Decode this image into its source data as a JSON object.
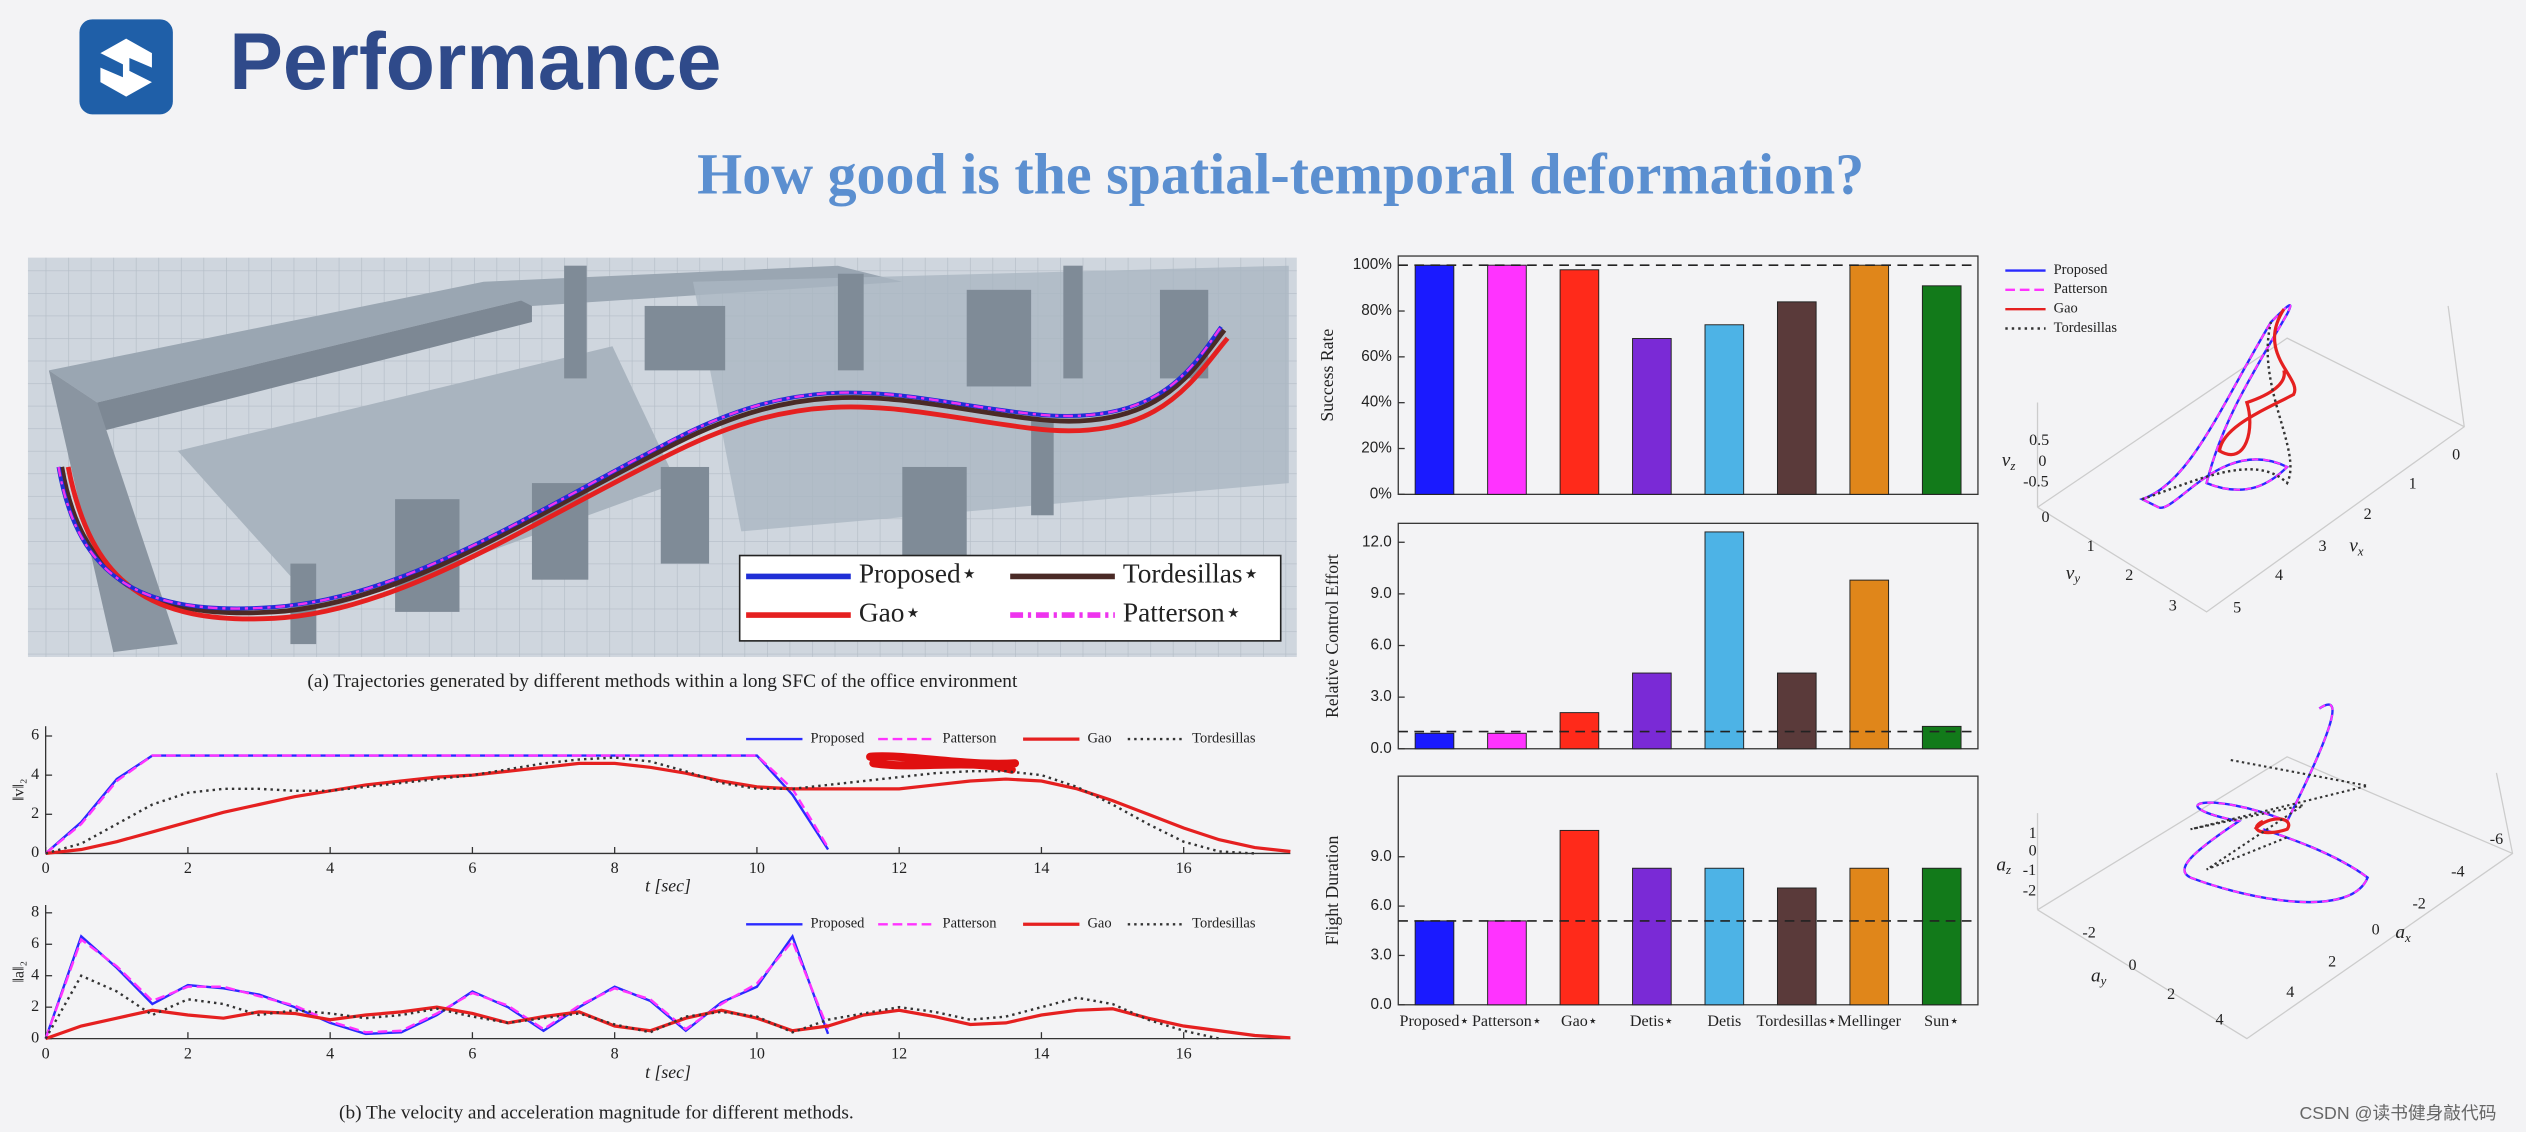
{
  "header": {
    "title": "Performance"
  },
  "subtitle": "How good is the spatial-temporal deformation?",
  "figure_a": {
    "caption": "(a) Trajectories generated by different methods within a long SFC of the office environment",
    "legend": [
      {
        "name": "Proposed⋆",
        "color": "#1f2fd6",
        "style": "solid"
      },
      {
        "name": "Tordesillas⋆",
        "color": "#4a2a26",
        "style": "solid"
      },
      {
        "name": "Gao⋆",
        "color": "#e52020",
        "style": "solid"
      },
      {
        "name": "Patterson⋆",
        "color": "#ee33ee",
        "style": "dashdot"
      }
    ]
  },
  "figure_b_caption": "(b) The velocity and acceleration magnitude for different methods.",
  "chart_data": [
    {
      "type": "line",
      "ylabel": "‖v‖₂",
      "xlabel": "t [sec]",
      "x": [
        0,
        0.5,
        1,
        1.5,
        2,
        2.5,
        3,
        3.5,
        4,
        4.5,
        5,
        5.5,
        6,
        6.5,
        7,
        7.5,
        8,
        8.5,
        9,
        9.5,
        10,
        10.5,
        11,
        11.5,
        12,
        12.5,
        13,
        13.5,
        14,
        14.5,
        15,
        15.5,
        16,
        16.5,
        17,
        17.5
      ],
      "xlim": [
        0,
        17.5
      ],
      "xticks": [
        0,
        2,
        4,
        6,
        8,
        10,
        12,
        14,
        16
      ],
      "ylim": [
        0,
        6.5
      ],
      "yticks": [
        0,
        2,
        4,
        6
      ],
      "series": [
        {
          "name": "Proposed",
          "color": "#2a2aff",
          "style": "solid",
          "values": [
            0,
            1.6,
            3.8,
            5,
            5,
            5,
            5,
            5,
            5,
            5,
            5,
            5,
            5,
            5,
            5,
            5,
            5,
            5,
            5,
            5,
            5,
            3.0,
            0.2,
            null,
            null,
            null,
            null,
            null,
            null,
            null,
            null,
            null,
            null,
            null,
            null,
            null
          ]
        },
        {
          "name": "Patterson",
          "color": "#ff33ff",
          "style": "dashed",
          "values": [
            0,
            1.5,
            3.7,
            5,
            5,
            5,
            5,
            5,
            5,
            5,
            5,
            5,
            5,
            5,
            5,
            5,
            5,
            5,
            5,
            5,
            5,
            3.3,
            0.3,
            null,
            null,
            null,
            null,
            null,
            null,
            null,
            null,
            null,
            null,
            null,
            null,
            null
          ]
        },
        {
          "name": "Gao",
          "color": "#e52020",
          "style": "thick",
          "values": [
            0,
            0.2,
            0.6,
            1.1,
            1.6,
            2.1,
            2.5,
            2.9,
            3.2,
            3.5,
            3.7,
            3.9,
            4.0,
            4.2,
            4.4,
            4.6,
            4.6,
            4.4,
            4.1,
            3.7,
            3.4,
            3.3,
            3.3,
            3.3,
            3.3,
            3.5,
            3.7,
            3.8,
            3.7,
            3.3,
            2.7,
            2.0,
            1.3,
            0.7,
            0.3,
            0.1
          ]
        },
        {
          "name": "Tordesillas",
          "color": "#333333",
          "style": "dotted",
          "values": [
            0,
            0.5,
            1.5,
            2.5,
            3.1,
            3.3,
            3.3,
            3.2,
            3.2,
            3.4,
            3.6,
            3.8,
            4.0,
            4.3,
            4.6,
            4.8,
            4.9,
            4.7,
            4.2,
            3.6,
            3.3,
            3.3,
            3.5,
            3.7,
            3.9,
            4.1,
            4.2,
            4.2,
            4.0,
            3.4,
            2.5,
            1.5,
            0.6,
            0.1,
            0,
            null
          ]
        }
      ]
    },
    {
      "type": "line",
      "ylabel": "‖a‖₂",
      "xlabel": "t [sec]",
      "x": [
        0,
        0.5,
        1,
        1.5,
        2,
        2.5,
        3,
        3.5,
        4,
        4.5,
        5,
        5.5,
        6,
        6.5,
        7,
        7.5,
        8,
        8.5,
        9,
        9.5,
        10,
        10.5,
        11,
        11.5,
        12,
        12.5,
        13,
        13.5,
        14,
        14.5,
        15,
        15.5,
        16,
        16.5,
        17,
        17.5
      ],
      "xlim": [
        0,
        17.5
      ],
      "xticks": [
        0,
        2,
        4,
        6,
        8,
        10,
        12,
        14,
        16
      ],
      "ylim": [
        0,
        8.5
      ],
      "yticks": [
        0,
        2,
        4,
        6,
        8
      ],
      "series": [
        {
          "name": "Proposed",
          "color": "#2a2aff",
          "style": "solid",
          "values": [
            0,
            6.5,
            4.5,
            2.2,
            3.4,
            3.2,
            2.8,
            2.0,
            1.0,
            0.3,
            0.4,
            1.5,
            3.0,
            2.0,
            0.5,
            2.0,
            3.3,
            2.4,
            0.5,
            2.3,
            3.3,
            6.5,
            0.3,
            null,
            null,
            null,
            null,
            null,
            null,
            null,
            null,
            null,
            null,
            null,
            null,
            null
          ]
        },
        {
          "name": "Patterson",
          "color": "#ff33ff",
          "style": "dashed",
          "values": [
            0,
            6.3,
            4.6,
            2.4,
            3.3,
            3.3,
            2.7,
            2.1,
            1.1,
            0.4,
            0.5,
            1.6,
            2.9,
            2.1,
            0.6,
            2.1,
            3.2,
            2.5,
            0.6,
            2.2,
            3.5,
            6.2,
            0.6,
            null,
            null,
            null,
            null,
            null,
            null,
            null,
            null,
            null,
            null,
            null,
            null,
            null
          ]
        },
        {
          "name": "Gao",
          "color": "#e52020",
          "style": "thick",
          "values": [
            0,
            0.8,
            1.3,
            1.8,
            1.5,
            1.3,
            1.7,
            1.6,
            1.2,
            1.5,
            1.7,
            2.0,
            1.6,
            1.0,
            1.4,
            1.7,
            0.8,
            0.5,
            1.3,
            1.8,
            1.3,
            0.5,
            0.8,
            1.5,
            1.8,
            1.4,
            0.9,
            1.0,
            1.5,
            1.8,
            1.9,
            1.3,
            0.8,
            0.5,
            0.2,
            0.05
          ]
        },
        {
          "name": "Tordesillas",
          "color": "#333333",
          "style": "dotted",
          "values": [
            0,
            4,
            3,
            1.5,
            2.5,
            2.2,
            1.5,
            1.8,
            1.6,
            1.3,
            1.5,
            1.9,
            1.4,
            1.0,
            1.3,
            1.6,
            0.9,
            0.4,
            1.4,
            1.7,
            1.4,
            0.4,
            1.2,
            1.6,
            2.0,
            1.7,
            1.2,
            1.4,
            2.0,
            2.6,
            2.2,
            1.2,
            0.5,
            0,
            null,
            null
          ]
        }
      ]
    },
    {
      "type": "bar",
      "ylabel": "Success Rate",
      "categories": [
        null,
        null,
        null,
        null,
        null,
        null,
        null,
        null
      ],
      "values": [
        100,
        100,
        98,
        68,
        74,
        84,
        100,
        91
      ],
      "colors": [
        "#1a1aff",
        "#ff33ff",
        "#ff2a1a",
        "#7a2ad6",
        "#4db3e6",
        "#5a3a3a",
        "#e0861a",
        "#127a1a"
      ],
      "ylim": [
        0,
        104
      ],
      "yticks": [
        {
          "value": 0,
          "label": "0%"
        },
        {
          "value": 20,
          "label": "20%"
        },
        {
          "value": 40,
          "label": "40%"
        },
        {
          "value": 60,
          "label": "60%"
        },
        {
          "value": 80,
          "label": "80%"
        },
        {
          "value": 100,
          "label": "100%"
        }
      ],
      "reference_line": 100
    },
    {
      "type": "bar",
      "ylabel": "Relative Control Effort",
      "categories": [
        null,
        null,
        null,
        null,
        null,
        null,
        null,
        null
      ],
      "values": [
        0.9,
        0.9,
        2.1,
        4.4,
        12.6,
        4.4,
        9.8,
        1.3
      ],
      "colors": [
        "#1a1aff",
        "#ff33ff",
        "#ff2a1a",
        "#7a2ad6",
        "#4db3e6",
        "#5a3a3a",
        "#e0861a",
        "#127a1a"
      ],
      "ylim": [
        0,
        13.1
      ],
      "yticks": [
        {
          "value": 0,
          "label": "0.0"
        },
        {
          "value": 3,
          "label": "3.0"
        },
        {
          "value": 6,
          "label": "6.0"
        },
        {
          "value": 9,
          "label": "9.0"
        },
        {
          "value": 12,
          "label": "12.0"
        }
      ],
      "reference_line": 1
    },
    {
      "type": "bar",
      "ylabel": "Flight Duration",
      "categories": [
        "Proposed⋆",
        "Patterson⋆",
        "Gao⋆",
        "Detis⋆",
        "Detis",
        "Tordesillas⋆",
        "Mellinger",
        "Sun⋆"
      ],
      "values": [
        5.1,
        5.1,
        10.6,
        8.3,
        8.3,
        7.1,
        8.3,
        8.3
      ],
      "colors": [
        "#1a1aff",
        "#ff33ff",
        "#ff2a1a",
        "#7a2ad6",
        "#4db3e6",
        "#5a3a3a",
        "#e0861a",
        "#127a1a"
      ],
      "ylim": [
        0,
        13.9
      ],
      "yticks": [
        {
          "value": 0,
          "label": "0.0"
        },
        {
          "value": 3,
          "label": "3.0"
        },
        {
          "value": 6,
          "label": "6.0"
        },
        {
          "value": 9,
          "label": "9.0"
        }
      ],
      "reference_line": 5.1
    }
  ],
  "figure_3d": [
    {
      "legend": [
        {
          "name": "Proposed",
          "color": "#2a2aff",
          "style": "solid"
        },
        {
          "name": "Patterson",
          "color": "#ff33ff",
          "style": "dashed"
        },
        {
          "name": "Gao",
          "color": "#e52020",
          "style": "solid"
        },
        {
          "name": "Tordesillas",
          "color": "#333333",
          "style": "dotted"
        }
      ],
      "axes": [
        {
          "label": {
            "symbol": "v",
            "subscript": "z"
          },
          "ticks": [
            0.5,
            0,
            -0.5
          ]
        },
        {
          "label": {
            "symbol": "v",
            "subscript": "y"
          },
          "ticks": [
            0,
            1,
            2,
            3
          ]
        },
        {
          "label": {
            "symbol": "v",
            "subscript": "x"
          },
          "ticks": [
            0,
            1,
            2,
            3,
            4,
            5
          ]
        }
      ]
    },
    {
      "legend": [],
      "axes": [
        {
          "label": {
            "symbol": "a",
            "subscript": "z"
          },
          "ticks": [
            1,
            0,
            -1,
            -2
          ]
        },
        {
          "label": {
            "symbol": "a",
            "subscript": "y"
          },
          "ticks": [
            -2,
            0,
            2,
            4
          ]
        },
        {
          "label": {
            "symbol": "a",
            "subscript": "x"
          },
          "ticks": [
            -6,
            -4,
            -2,
            0,
            2,
            4
          ]
        }
      ]
    }
  ],
  "watermark": "CSDN @读书健身敲代码"
}
